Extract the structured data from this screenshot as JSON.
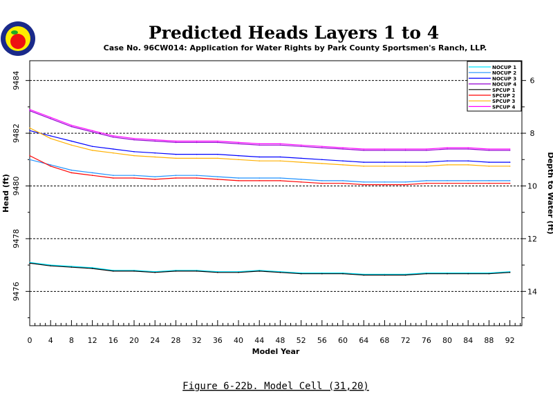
{
  "chart_data": {
    "type": "line",
    "title": "Predicted Heads Layers 1 to 4",
    "subtitle": "Case No. 96CW014: Application for Water Rights by Park County Sportsmen's Ranch, LLP.",
    "caption": "Figure 6-22b.  Model Cell (31,20)",
    "xlabel": "Model Year",
    "ylabel": "Head (ft)",
    "ylabel_right": "Depth to Water (ft)",
    "xlim": [
      0,
      94.3
    ],
    "ylim": [
      9474.7,
      9484.75
    ],
    "xticks": [
      "0",
      "4",
      "8",
      "12",
      "16",
      "20",
      "24",
      "28",
      "32",
      "36",
      "40",
      "44",
      "48",
      "52",
      "56",
      "60",
      "64",
      "68",
      "72",
      "76",
      "80",
      "84",
      "88",
      "92"
    ],
    "yticks": [
      "9476",
      "9478",
      "9480",
      "9482",
      "9484"
    ],
    "yticks_right": [
      "6",
      "8",
      "10",
      "12",
      "14"
    ],
    "grid": "horizontal dashed at major y ticks",
    "legend_position": "top-right",
    "x": [
      0,
      4,
      8,
      12,
      16,
      20,
      24,
      28,
      32,
      36,
      40,
      44,
      48,
      52,
      56,
      60,
      64,
      68,
      72,
      76,
      80,
      84,
      88,
      92
    ],
    "series": [
      {
        "name": "NOCUP 1",
        "color": "#00e5ff",
        "values": [
          9477.1,
          9477.0,
          9476.95,
          9476.9,
          9476.8,
          9476.8,
          9476.75,
          9476.8,
          9476.8,
          9476.75,
          9476.75,
          9476.8,
          9476.75,
          9476.7,
          9476.7,
          9476.7,
          9476.65,
          9476.65,
          9476.65,
          9476.7,
          9476.7,
          9476.7,
          9476.7,
          9476.75
        ]
      },
      {
        "name": "NOCUP 2",
        "color": "#1e90ff",
        "values": [
          9481.0,
          9480.8,
          9480.6,
          9480.5,
          9480.4,
          9480.4,
          9480.35,
          9480.4,
          9480.4,
          9480.35,
          9480.3,
          9480.3,
          9480.3,
          9480.25,
          9480.2,
          9480.2,
          9480.15,
          9480.15,
          9480.15,
          9480.2,
          9480.2,
          9480.2,
          9480.2,
          9480.2
        ]
      },
      {
        "name": "NOCUP 3",
        "color": "#0000ff",
        "values": [
          9482.1,
          9481.9,
          9481.7,
          9481.5,
          9481.4,
          9481.3,
          9481.25,
          9481.2,
          9481.2,
          9481.2,
          9481.15,
          9481.1,
          9481.1,
          9481.05,
          9481.0,
          9480.95,
          9480.9,
          9480.9,
          9480.9,
          9480.9,
          9480.95,
          9480.95,
          9480.9,
          9480.9
        ]
      },
      {
        "name": "NOCUP 4",
        "color": "#9400d3",
        "values": [
          9482.85,
          9482.55,
          9482.25,
          9482.05,
          9481.85,
          9481.75,
          9481.7,
          9481.65,
          9481.65,
          9481.65,
          9481.6,
          9481.55,
          9481.55,
          9481.5,
          9481.45,
          9481.4,
          9481.35,
          9481.35,
          9481.35,
          9481.35,
          9481.4,
          9481.4,
          9481.35,
          9481.35
        ]
      },
      {
        "name": "SPCUP 1",
        "color": "#000000",
        "values": [
          9477.07,
          9476.97,
          9476.92,
          9476.87,
          9476.77,
          9476.77,
          9476.72,
          9476.77,
          9476.77,
          9476.72,
          9476.72,
          9476.77,
          9476.72,
          9476.67,
          9476.67,
          9476.67,
          9476.62,
          9476.62,
          9476.62,
          9476.67,
          9476.67,
          9476.67,
          9476.67,
          9476.72
        ]
      },
      {
        "name": "SPCUP 2",
        "color": "#ff0000",
        "values": [
          9481.15,
          9480.75,
          9480.5,
          9480.4,
          9480.3,
          9480.3,
          9480.25,
          9480.3,
          9480.3,
          9480.25,
          9480.2,
          9480.2,
          9480.2,
          9480.15,
          9480.1,
          9480.1,
          9480.05,
          9480.05,
          9480.05,
          9480.1,
          9480.1,
          9480.1,
          9480.1,
          9480.1
        ]
      },
      {
        "name": "SPCUP 3",
        "color": "#ffb000",
        "values": [
          9482.2,
          9481.8,
          9481.55,
          9481.35,
          9481.25,
          9481.15,
          9481.1,
          9481.05,
          9481.05,
          9481.05,
          9481.0,
          9480.95,
          9480.95,
          9480.9,
          9480.85,
          9480.8,
          9480.75,
          9480.75,
          9480.75,
          9480.75,
          9480.8,
          9480.8,
          9480.75,
          9480.75
        ]
      },
      {
        "name": "SPCUP 4",
        "color": "#ff00ff",
        "values": [
          9482.9,
          9482.6,
          9482.3,
          9482.1,
          9481.9,
          9481.8,
          9481.75,
          9481.7,
          9481.7,
          9481.7,
          9481.65,
          9481.6,
          9481.6,
          9481.55,
          9481.5,
          9481.45,
          9481.4,
          9481.4,
          9481.4,
          9481.4,
          9481.45,
          9481.45,
          9481.4,
          9481.4
        ]
      }
    ]
  },
  "logo": {
    "name": "Park County Sportsmen's Ranch seal"
  }
}
